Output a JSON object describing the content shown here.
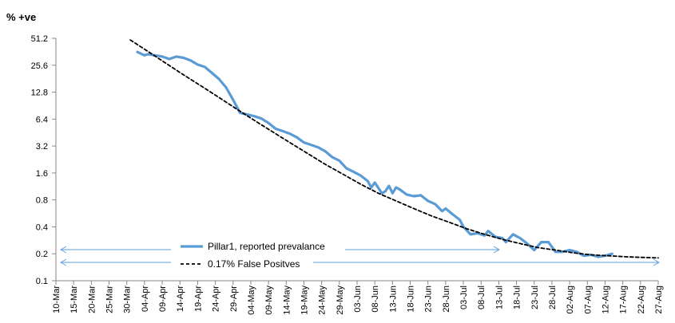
{
  "chart_data": {
    "type": "line",
    "ylabel": "% +ve",
    "yscale": "log2",
    "ylim": [
      0.1,
      51.2
    ],
    "yticks": [
      0.1,
      0.2,
      0.4,
      0.8,
      1.6,
      3.2,
      6.4,
      12.8,
      25.6,
      51.2
    ],
    "ytick_labels": [
      "0.1",
      "0.2",
      "0.4",
      "0.8",
      "1.6",
      "3.2",
      "6.4",
      "12.8",
      "25.6",
      "51.2"
    ],
    "xlim": [
      "2020-03-10",
      "2020-08-27"
    ],
    "xtick_labels": [
      "10-Mar",
      "15-Mar",
      "20-Mar",
      "25-Mar",
      "30-Mar",
      "04-Apr",
      "09-Apr",
      "14-Apr",
      "19-Apr",
      "24-Apr",
      "29-Apr",
      "04-May",
      "09-May",
      "14-May",
      "19-May",
      "24-May",
      "29-May",
      "03-Jun",
      "08-Jun",
      "13-Jun",
      "18-Jun",
      "23-Jun",
      "28-Jun",
      "03-Jul",
      "08-Jul",
      "13-Jul",
      "18-Jul",
      "23-Jul",
      "28-Jul",
      "02-Aug",
      "07-Aug",
      "12-Aug",
      "17-Aug",
      "22-Aug",
      "27-Aug"
    ],
    "grid": false,
    "legend_position": "bottom-center",
    "series": [
      {
        "name": "Pillar1, reported prevalance",
        "color": "#5B9BD5",
        "style": "solid",
        "points": [
          [
            "2020-04-02",
            36
          ],
          [
            "2020-04-04",
            33
          ],
          [
            "2020-04-05",
            34
          ],
          [
            "2020-04-07",
            33
          ],
          [
            "2020-04-09",
            32
          ],
          [
            "2020-04-11",
            30
          ],
          [
            "2020-04-13",
            32
          ],
          [
            "2020-04-15",
            31
          ],
          [
            "2020-04-17",
            29
          ],
          [
            "2020-04-19",
            26
          ],
          [
            "2020-04-21",
            24.5
          ],
          [
            "2020-04-23",
            21
          ],
          [
            "2020-04-25",
            18
          ],
          [
            "2020-04-27",
            14.5
          ],
          [
            "2020-04-29",
            10.5
          ],
          [
            "2020-05-01",
            7.5
          ],
          [
            "2020-05-03",
            7.2
          ],
          [
            "2020-05-05",
            6.9
          ],
          [
            "2020-05-07",
            6.5
          ],
          [
            "2020-05-09",
            5.8
          ],
          [
            "2020-05-11",
            5.0
          ],
          [
            "2020-05-13",
            4.7
          ],
          [
            "2020-05-15",
            4.4
          ],
          [
            "2020-05-17",
            4.0
          ],
          [
            "2020-05-19",
            3.5
          ],
          [
            "2020-05-21",
            3.3
          ],
          [
            "2020-05-23",
            3.1
          ],
          [
            "2020-05-25",
            2.8
          ],
          [
            "2020-05-27",
            2.4
          ],
          [
            "2020-05-29",
            2.2
          ],
          [
            "2020-05-31",
            1.8
          ],
          [
            "2020-06-02",
            1.65
          ],
          [
            "2020-06-04",
            1.5
          ],
          [
            "2020-06-06",
            1.3
          ],
          [
            "2020-06-07",
            1.1
          ],
          [
            "2020-06-08",
            1.25
          ],
          [
            "2020-06-10",
            0.95
          ],
          [
            "2020-06-11",
            1.0
          ],
          [
            "2020-06-12",
            1.15
          ],
          [
            "2020-06-13",
            0.95
          ],
          [
            "2020-06-14",
            1.1
          ],
          [
            "2020-06-15",
            1.05
          ],
          [
            "2020-06-17",
            0.92
          ],
          [
            "2020-06-19",
            0.88
          ],
          [
            "2020-06-21",
            0.9
          ],
          [
            "2020-06-23",
            0.78
          ],
          [
            "2020-06-25",
            0.72
          ],
          [
            "2020-06-27",
            0.6
          ],
          [
            "2020-06-28",
            0.64
          ],
          [
            "2020-06-30",
            0.55
          ],
          [
            "2020-07-02",
            0.48
          ],
          [
            "2020-07-03",
            0.4
          ],
          [
            "2020-07-05",
            0.33
          ],
          [
            "2020-07-07",
            0.34
          ],
          [
            "2020-07-09",
            0.32
          ],
          [
            "2020-07-10",
            0.36
          ],
          [
            "2020-07-12",
            0.31
          ],
          [
            "2020-07-14",
            0.3
          ],
          [
            "2020-07-15",
            0.27
          ],
          [
            "2020-07-17",
            0.33
          ],
          [
            "2020-07-19",
            0.3
          ],
          [
            "2020-07-21",
            0.26
          ],
          [
            "2020-07-23",
            0.22
          ],
          [
            "2020-07-25",
            0.27
          ],
          [
            "2020-07-27",
            0.27
          ],
          [
            "2020-07-29",
            0.21
          ],
          [
            "2020-07-31",
            0.21
          ],
          [
            "2020-08-02",
            0.22
          ],
          [
            "2020-08-04",
            0.21
          ],
          [
            "2020-08-06",
            0.19
          ],
          [
            "2020-08-08",
            0.195
          ],
          [
            "2020-08-10",
            0.185
          ],
          [
            "2020-08-12",
            0.19
          ],
          [
            "2020-08-14",
            0.2
          ]
        ]
      },
      {
        "name": "0.17% False Positves",
        "color": "#000000",
        "style": "dashed",
        "points": [
          [
            "2020-03-31",
            49
          ],
          [
            "2020-04-05",
            36.5
          ],
          [
            "2020-04-10",
            27
          ],
          [
            "2020-04-15",
            20
          ],
          [
            "2020-04-20",
            15
          ],
          [
            "2020-04-25",
            11.2
          ],
          [
            "2020-04-30",
            8.3
          ],
          [
            "2020-05-05",
            6.2
          ],
          [
            "2020-05-10",
            4.65
          ],
          [
            "2020-05-15",
            3.5
          ],
          [
            "2020-05-20",
            2.65
          ],
          [
            "2020-05-25",
            2.0
          ],
          [
            "2020-05-30",
            1.55
          ],
          [
            "2020-06-04",
            1.2
          ],
          [
            "2020-06-09",
            0.95
          ],
          [
            "2020-06-14",
            0.78
          ],
          [
            "2020-06-19",
            0.64
          ],
          [
            "2020-06-24",
            0.53
          ],
          [
            "2020-06-29",
            0.45
          ],
          [
            "2020-07-04",
            0.38
          ],
          [
            "2020-07-09",
            0.33
          ],
          [
            "2020-07-14",
            0.29
          ],
          [
            "2020-07-19",
            0.26
          ],
          [
            "2020-07-24",
            0.235
          ],
          [
            "2020-07-29",
            0.22
          ],
          [
            "2020-08-03",
            0.205
          ],
          [
            "2020-08-08",
            0.195
          ],
          [
            "2020-08-13",
            0.19
          ],
          [
            "2020-08-18",
            0.185
          ],
          [
            "2020-08-23",
            0.182
          ],
          [
            "2020-08-27",
            0.18
          ]
        ]
      }
    ]
  }
}
